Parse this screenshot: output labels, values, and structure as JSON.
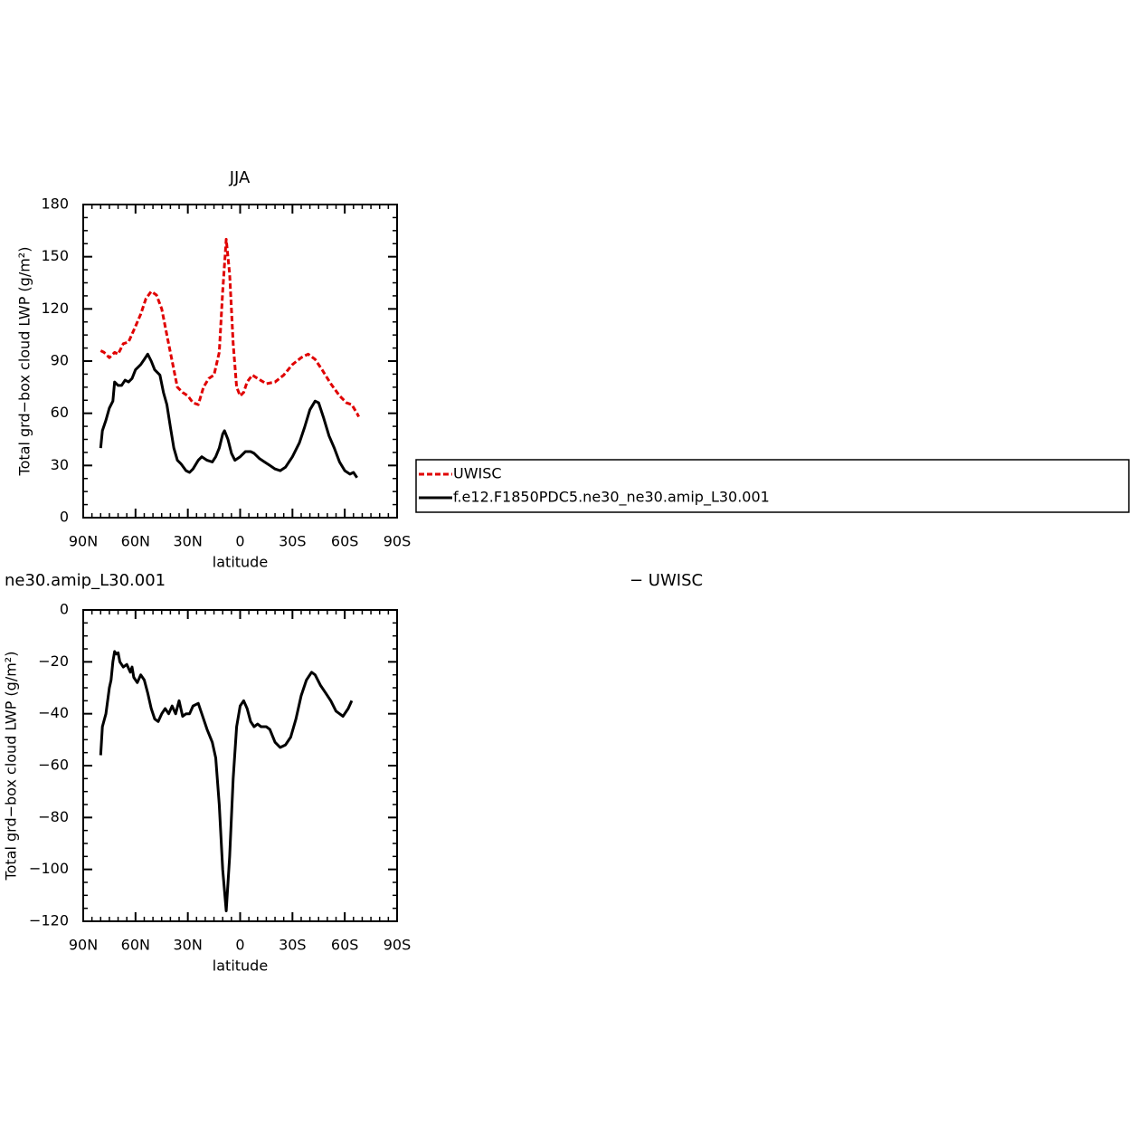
{
  "chart_data": [
    {
      "type": "line",
      "title": "JJA",
      "xlabel": "latitude",
      "ylabel": "Total grd−box cloud LWP (g/m²)",
      "xlim": [
        90,
        -90
      ],
      "xticks": [
        {
          "value": 90,
          "label": "90N"
        },
        {
          "value": 60,
          "label": "60N"
        },
        {
          "value": 30,
          "label": "30N"
        },
        0,
        {
          "value": -30,
          "label": "30S"
        },
        {
          "value": -60,
          "label": "60S"
        },
        {
          "value": -90,
          "label": "90S"
        }
      ],
      "ylim": [
        0,
        180
      ],
      "yticks": [
        0,
        30,
        60,
        90,
        120,
        150,
        180
      ],
      "series": [
        {
          "name": "UWISC",
          "color": "#e00000",
          "linestyle": "dashed",
          "x": [
            80,
            78,
            75,
            72,
            70,
            67,
            64,
            60,
            57,
            54,
            51,
            48,
            45,
            42,
            39,
            36,
            33,
            30,
            27,
            24,
            21,
            18,
            15,
            12,
            10,
            8,
            6,
            4,
            2,
            0,
            -2,
            -4,
            -7,
            -10,
            -15,
            -20,
            -25,
            -30,
            -35,
            -39,
            -43,
            -47,
            -52,
            -57,
            -61,
            -64,
            -67,
            -68
          ],
          "values": [
            96,
            95,
            92,
            95,
            94,
            100,
            101,
            110,
            117,
            126,
            130,
            128,
            120,
            105,
            90,
            75,
            72,
            70,
            66,
            65,
            75,
            80,
            82,
            95,
            130,
            160,
            140,
            100,
            75,
            70,
            72,
            78,
            82,
            80,
            77,
            78,
            82,
            88,
            92,
            94,
            91,
            85,
            77,
            70,
            66,
            65,
            60,
            58
          ]
        },
        {
          "name": "f.e12.F1850PDC5.ne30_ne30.amip_L30.001",
          "color": "#000000",
          "linestyle": "solid",
          "x": [
            80,
            79,
            77,
            75,
            73,
            72,
            70,
            68,
            66,
            64,
            62,
            60,
            57,
            55,
            53,
            51,
            49,
            46,
            44,
            42,
            40,
            38,
            36,
            34,
            31,
            29,
            27,
            24,
            22,
            19,
            16,
            14,
            12,
            10,
            9,
            7,
            5,
            3,
            0,
            -3,
            -6,
            -8,
            -11,
            -14,
            -17,
            -20,
            -23,
            -26,
            -30,
            -34,
            -37,
            -40,
            -43,
            -45,
            -48,
            -51,
            -54,
            -57,
            -60,
            -63,
            -65,
            -67
          ],
          "values": [
            40,
            50,
            56,
            63,
            67,
            78,
            76,
            76,
            79,
            78,
            80,
            85,
            88,
            91,
            94,
            90,
            85,
            82,
            72,
            65,
            52,
            40,
            33,
            31,
            27,
            26,
            28,
            33,
            35,
            33,
            32,
            35,
            40,
            48,
            50,
            45,
            37,
            33,
            35,
            38,
            38,
            37,
            34,
            32,
            30,
            28,
            27,
            29,
            35,
            43,
            52,
            62,
            67,
            66,
            57,
            47,
            40,
            32,
            27,
            25,
            26,
            23
          ]
        }
      ]
    },
    {
      "type": "line",
      "title": "ne30.amip_L30.001",
      "xlabel": "latitude",
      "ylabel": "Total grd−box cloud LWP (g/m²)",
      "annotation": "− UWISC",
      "xlim": [
        90,
        -90
      ],
      "xticks": [
        {
          "value": 90,
          "label": "90N"
        },
        {
          "value": 60,
          "label": "60N"
        },
        {
          "value": 30,
          "label": "30N"
        },
        0,
        {
          "value": -30,
          "label": "30S"
        },
        {
          "value": -60,
          "label": "60S"
        },
        {
          "value": -90,
          "label": "90S"
        }
      ],
      "ylim": [
        -120,
        0
      ],
      "yticks": [
        {
          "value": -120,
          "label": "−120"
        },
        {
          "value": -100,
          "label": "−100"
        },
        {
          "value": -80,
          "label": "−80"
        },
        {
          "value": -60,
          "label": "−60"
        },
        {
          "value": -40,
          "label": "−40"
        },
        {
          "value": -20,
          "label": "−20"
        },
        0
      ],
      "series": [
        {
          "color": "#000000",
          "linestyle": "solid",
          "x": [
            80,
            79,
            77,
            75,
            74,
            73,
            72,
            71,
            70,
            69,
            67,
            65,
            63,
            62,
            61,
            59,
            57,
            55,
            53,
            51,
            49,
            47,
            45,
            43,
            41,
            39,
            37,
            35,
            33,
            31,
            29,
            27,
            24,
            22,
            19,
            16,
            14,
            12,
            10,
            8,
            6,
            4,
            2,
            0,
            -2,
            -4,
            -6,
            -8,
            -10,
            -12,
            -15,
            -17,
            -20,
            -23,
            -26,
            -29,
            -32,
            -35,
            -38,
            -41,
            -43,
            -46,
            -49,
            -52,
            -55,
            -57,
            -59,
            -62,
            -64
          ],
          "values": [
            -56,
            -45,
            -40,
            -30,
            -27,
            -20,
            -16,
            -17,
            -16.5,
            -20,
            -22,
            -21,
            -24,
            -22,
            -26,
            -28,
            -25,
            -27,
            -32,
            -38,
            -42,
            -43,
            -40,
            -38,
            -40,
            -37,
            -40,
            -35,
            -41,
            -40,
            -40,
            -37,
            -36,
            -40,
            -46,
            -51,
            -57,
            -75,
            -100,
            -116,
            -95,
            -65,
            -45,
            -37,
            -35,
            -38,
            -43,
            -45,
            -44,
            -45,
            -45,
            -46,
            -51,
            -53,
            -52,
            -49,
            -42,
            -33,
            -27,
            -24,
            -25,
            -29,
            -32,
            -35,
            -39,
            -40,
            -41,
            -38,
            -35
          ]
        }
      ]
    }
  ]
}
